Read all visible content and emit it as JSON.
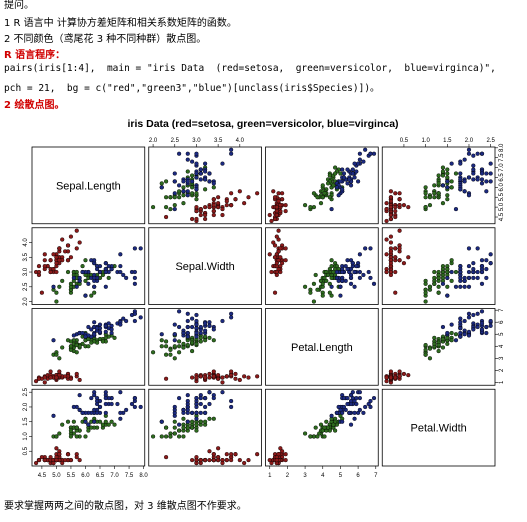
{
  "text": {
    "question": "提问。",
    "item1": "1 R 语言中 计算协方差矩阵和相关系数矩阵的函数。",
    "item2": "2 不同颜色（鸢尾花 3 种不同种群）散点图。",
    "program_heading": "R 语言程序：",
    "code": [
      "pairs(iris[1:4],  main = \"iris Data  (red=setosa,  green=versicolor,  blue=virginca)\",",
      "pch = 21,  bg = c(\"red\",\"green3\",\"blue\")[unclass(iris$Species)])。"
    ],
    "plot_heading": "2 绘散点图。",
    "footer": "要求掌握两两之间的散点图，对 3 维散点图不作要求。"
  },
  "chart_data": {
    "type": "scatter",
    "title": "iris Data (red=setosa, green=versicolor, blue=virginca)",
    "variables": [
      {
        "name": "Sepal.Length",
        "lim": [
          4.16,
          8.04
        ],
        "ticks": [
          4.5,
          {
            "value": 5,
            "label": "5.0"
          },
          5.5,
          {
            "value": 6,
            "label": "6.0"
          },
          6.5,
          {
            "value": 7,
            "label": "7.0"
          },
          7.5,
          {
            "value": 8,
            "label": "8.0"
          }
        ]
      },
      {
        "name": "Sepal.Width",
        "lim": [
          1.9,
          4.5
        ],
        "ticks": [
          {
            "value": 2,
            "label": "2.0"
          },
          2.5,
          {
            "value": 3,
            "label": "3.0"
          },
          3.5,
          {
            "value": 4,
            "label": "4.0"
          }
        ]
      },
      {
        "name": "Petal.Length",
        "lim": [
          0.76,
          7.14
        ],
        "ticks": [
          1,
          2,
          3,
          4,
          5,
          6,
          7
        ]
      },
      {
        "name": "Petal.Width",
        "lim": [
          0,
          2.6
        ],
        "ticks": [
          0.5,
          {
            "value": 1,
            "label": "1.0"
          },
          1.5,
          {
            "value": 2,
            "label": "2.0"
          },
          2.5
        ]
      }
    ],
    "groups": [
      {
        "color": "#8b1a1a",
        "rows": [
          [
            5.1,
            3.5,
            1.4,
            0.2
          ],
          [
            4.9,
            3.0,
            1.4,
            0.2
          ],
          [
            4.7,
            3.2,
            1.3,
            0.2
          ],
          [
            4.6,
            3.1,
            1.5,
            0.2
          ],
          [
            5.0,
            3.6,
            1.4,
            0.2
          ],
          [
            5.4,
            3.9,
            1.7,
            0.4
          ],
          [
            4.6,
            3.4,
            1.4,
            0.3
          ],
          [
            5.0,
            3.4,
            1.5,
            0.2
          ],
          [
            4.4,
            2.9,
            1.4,
            0.2
          ],
          [
            4.9,
            3.1,
            1.5,
            0.1
          ],
          [
            5.4,
            3.7,
            1.5,
            0.2
          ],
          [
            4.8,
            3.4,
            1.6,
            0.2
          ],
          [
            4.8,
            3.0,
            1.4,
            0.1
          ],
          [
            4.3,
            3.0,
            1.1,
            0.1
          ],
          [
            5.8,
            4.0,
            1.2,
            0.2
          ],
          [
            5.7,
            4.4,
            1.5,
            0.4
          ],
          [
            5.4,
            3.9,
            1.3,
            0.4
          ],
          [
            5.1,
            3.5,
            1.4,
            0.3
          ],
          [
            5.7,
            3.8,
            1.7,
            0.3
          ],
          [
            5.1,
            3.8,
            1.5,
            0.3
          ],
          [
            5.4,
            3.4,
            1.7,
            0.2
          ],
          [
            5.1,
            3.7,
            1.5,
            0.4
          ],
          [
            4.6,
            3.6,
            1.0,
            0.2
          ],
          [
            5.1,
            3.3,
            1.7,
            0.5
          ],
          [
            4.8,
            3.4,
            1.9,
            0.2
          ],
          [
            5.0,
            3.0,
            1.6,
            0.2
          ],
          [
            5.0,
            3.4,
            1.6,
            0.4
          ],
          [
            5.2,
            3.5,
            1.5,
            0.2
          ],
          [
            5.2,
            3.4,
            1.4,
            0.2
          ],
          [
            4.7,
            3.2,
            1.6,
            0.2
          ],
          [
            4.8,
            3.1,
            1.6,
            0.2
          ],
          [
            5.4,
            3.4,
            1.5,
            0.4
          ],
          [
            5.2,
            4.1,
            1.5,
            0.1
          ],
          [
            5.5,
            4.2,
            1.4,
            0.2
          ],
          [
            4.9,
            3.1,
            1.5,
            0.2
          ],
          [
            5.0,
            3.2,
            1.2,
            0.2
          ],
          [
            5.5,
            3.5,
            1.3,
            0.2
          ],
          [
            4.9,
            3.6,
            1.4,
            0.1
          ],
          [
            4.4,
            3.0,
            1.3,
            0.2
          ],
          [
            5.1,
            3.4,
            1.5,
            0.2
          ],
          [
            5.0,
            3.5,
            1.3,
            0.3
          ],
          [
            4.5,
            2.3,
            1.3,
            0.3
          ],
          [
            4.4,
            3.2,
            1.3,
            0.2
          ],
          [
            5.0,
            3.5,
            1.6,
            0.6
          ],
          [
            5.1,
            3.8,
            1.9,
            0.4
          ],
          [
            4.8,
            3.0,
            1.4,
            0.3
          ],
          [
            5.1,
            3.8,
            1.6,
            0.2
          ],
          [
            4.6,
            3.2,
            1.4,
            0.2
          ],
          [
            5.3,
            3.7,
            1.5,
            0.2
          ],
          [
            5.0,
            3.3,
            1.4,
            0.2
          ]
        ]
      },
      {
        "color": "#2e6b1f",
        "rows": [
          [
            7.0,
            3.2,
            4.7,
            1.4
          ],
          [
            6.4,
            3.2,
            4.5,
            1.5
          ],
          [
            6.9,
            3.1,
            4.9,
            1.5
          ],
          [
            5.5,
            2.3,
            4.0,
            1.3
          ],
          [
            6.5,
            2.8,
            4.6,
            1.5
          ],
          [
            5.7,
            2.8,
            4.5,
            1.3
          ],
          [
            6.3,
            3.3,
            4.7,
            1.6
          ],
          [
            4.9,
            2.4,
            3.3,
            1.0
          ],
          [
            6.6,
            2.9,
            4.6,
            1.3
          ],
          [
            5.2,
            2.7,
            3.9,
            1.4
          ],
          [
            5.0,
            2.0,
            3.5,
            1.0
          ],
          [
            5.9,
            3.0,
            4.2,
            1.5
          ],
          [
            6.0,
            2.2,
            4.0,
            1.0
          ],
          [
            6.1,
            2.9,
            4.7,
            1.4
          ],
          [
            5.6,
            2.9,
            3.6,
            1.3
          ],
          [
            6.7,
            3.1,
            4.4,
            1.4
          ],
          [
            5.6,
            3.0,
            4.5,
            1.5
          ],
          [
            5.8,
            2.7,
            4.1,
            1.0
          ],
          [
            6.2,
            2.2,
            4.5,
            1.5
          ],
          [
            5.6,
            2.5,
            3.9,
            1.1
          ],
          [
            5.9,
            3.2,
            4.8,
            1.8
          ],
          [
            6.1,
            2.8,
            4.0,
            1.3
          ],
          [
            6.3,
            2.5,
            4.9,
            1.5
          ],
          [
            6.1,
            2.8,
            4.7,
            1.2
          ],
          [
            6.4,
            2.9,
            4.3,
            1.3
          ],
          [
            6.6,
            3.0,
            4.4,
            1.4
          ],
          [
            6.8,
            2.8,
            4.8,
            1.4
          ],
          [
            6.7,
            3.0,
            5.0,
            1.7
          ],
          [
            6.0,
            2.9,
            4.5,
            1.5
          ],
          [
            5.7,
            2.6,
            3.5,
            1.0
          ],
          [
            5.5,
            2.4,
            3.8,
            1.1
          ],
          [
            5.5,
            2.4,
            3.7,
            1.0
          ],
          [
            5.8,
            2.7,
            3.9,
            1.2
          ],
          [
            6.0,
            2.7,
            5.1,
            1.6
          ],
          [
            5.4,
            3.0,
            4.5,
            1.5
          ],
          [
            6.0,
            3.4,
            4.5,
            1.6
          ],
          [
            6.7,
            3.1,
            4.7,
            1.5
          ],
          [
            6.3,
            2.3,
            4.4,
            1.3
          ],
          [
            5.6,
            3.0,
            4.1,
            1.3
          ],
          [
            5.5,
            2.5,
            4.0,
            1.3
          ],
          [
            5.5,
            2.6,
            4.4,
            1.2
          ],
          [
            6.1,
            3.0,
            4.6,
            1.4
          ],
          [
            5.8,
            2.6,
            4.0,
            1.2
          ],
          [
            5.0,
            2.3,
            3.3,
            1.0
          ],
          [
            5.6,
            2.7,
            4.2,
            1.3
          ],
          [
            5.7,
            3.0,
            4.2,
            1.2
          ],
          [
            5.7,
            2.9,
            4.2,
            1.3
          ],
          [
            6.2,
            2.9,
            4.3,
            1.3
          ],
          [
            5.1,
            2.5,
            3.0,
            1.1
          ],
          [
            5.7,
            2.8,
            4.1,
            1.3
          ]
        ]
      },
      {
        "color": "#1c2a80",
        "rows": [
          [
            6.3,
            3.3,
            6.0,
            2.5
          ],
          [
            5.8,
            2.7,
            5.1,
            1.9
          ],
          [
            7.1,
            3.0,
            5.9,
            2.1
          ],
          [
            6.3,
            2.9,
            5.6,
            1.8
          ],
          [
            6.5,
            3.0,
            5.8,
            2.2
          ],
          [
            7.6,
            3.0,
            6.6,
            2.1
          ],
          [
            4.9,
            2.5,
            4.5,
            1.7
          ],
          [
            7.3,
            2.9,
            6.3,
            1.8
          ],
          [
            6.7,
            2.5,
            5.8,
            1.8
          ],
          [
            7.2,
            3.6,
            6.1,
            2.5
          ],
          [
            6.5,
            3.2,
            5.1,
            2.0
          ],
          [
            6.4,
            2.7,
            5.3,
            1.9
          ],
          [
            6.8,
            3.0,
            5.5,
            2.1
          ],
          [
            5.7,
            2.5,
            5.0,
            2.0
          ],
          [
            5.8,
            2.8,
            5.1,
            2.4
          ],
          [
            6.4,
            3.2,
            5.3,
            2.3
          ],
          [
            6.5,
            3.0,
            5.5,
            1.8
          ],
          [
            7.7,
            3.8,
            6.7,
            2.2
          ],
          [
            7.7,
            2.6,
            6.9,
            2.3
          ],
          [
            6.0,
            2.2,
            5.0,
            1.5
          ],
          [
            6.9,
            3.2,
            5.7,
            2.3
          ],
          [
            5.6,
            2.8,
            4.9,
            2.0
          ],
          [
            7.7,
            2.8,
            6.7,
            2.0
          ],
          [
            6.3,
            2.7,
            4.9,
            1.8
          ],
          [
            6.7,
            3.3,
            5.7,
            2.1
          ],
          [
            7.2,
            3.2,
            6.0,
            1.8
          ],
          [
            6.2,
            2.8,
            4.8,
            1.8
          ],
          [
            6.1,
            3.0,
            4.9,
            1.8
          ],
          [
            6.4,
            2.8,
            5.6,
            2.1
          ],
          [
            7.2,
            3.0,
            5.8,
            1.6
          ],
          [
            7.4,
            2.8,
            6.1,
            1.9
          ],
          [
            7.9,
            3.8,
            6.4,
            2.0
          ],
          [
            6.4,
            2.8,
            5.6,
            2.2
          ],
          [
            6.3,
            2.8,
            5.1,
            1.5
          ],
          [
            6.1,
            2.6,
            5.6,
            1.4
          ],
          [
            7.7,
            3.0,
            6.1,
            2.3
          ],
          [
            6.3,
            3.4,
            5.6,
            2.4
          ],
          [
            6.4,
            3.1,
            5.5,
            1.8
          ],
          [
            6.0,
            3.0,
            4.8,
            1.8
          ],
          [
            6.9,
            3.1,
            5.4,
            2.1
          ],
          [
            6.7,
            3.1,
            5.6,
            2.4
          ],
          [
            6.9,
            3.1,
            5.1,
            2.3
          ],
          [
            5.8,
            2.7,
            5.1,
            1.9
          ],
          [
            6.8,
            3.2,
            5.9,
            2.3
          ],
          [
            6.7,
            3.3,
            5.7,
            2.5
          ],
          [
            6.7,
            3.0,
            5.2,
            2.3
          ],
          [
            6.3,
            2.5,
            5.0,
            1.9
          ],
          [
            6.5,
            3.0,
            5.2,
            2.0
          ],
          [
            6.2,
            3.4,
            5.4,
            2.3
          ],
          [
            5.9,
            3.0,
            5.1,
            1.8
          ]
        ]
      }
    ]
  }
}
